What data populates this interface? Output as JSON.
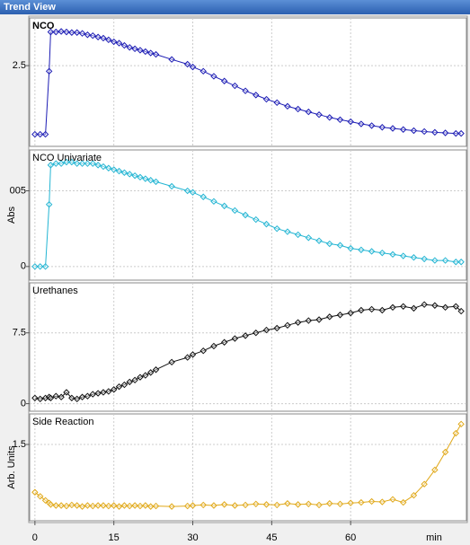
{
  "window_title": "Trend View",
  "chart_data": [
    {
      "type": "line",
      "title": "NCO",
      "color": "#1c1cb4",
      "xlim": [
        -1,
        82
      ],
      "ylim": [
        -0.38,
        4.2
      ],
      "yticks": [
        2.5
      ],
      "x": [
        0,
        1,
        2,
        2.7,
        3,
        4,
        5,
        6,
        7,
        8,
        9,
        10,
        11,
        12,
        13,
        14,
        15,
        16,
        17,
        18,
        19,
        20,
        21,
        22,
        23,
        26,
        29,
        30,
        32,
        34,
        36,
        38,
        40,
        42,
        44,
        46,
        48,
        50,
        52,
        54,
        56,
        58,
        60,
        62,
        64,
        66,
        68,
        70,
        72,
        74,
        76,
        78,
        80,
        81
      ],
      "values": [
        0.05,
        0.05,
        0.05,
        2.3,
        3.7,
        3.7,
        3.72,
        3.7,
        3.68,
        3.68,
        3.65,
        3.6,
        3.57,
        3.52,
        3.48,
        3.42,
        3.35,
        3.3,
        3.22,
        3.15,
        3.1,
        3.05,
        3.0,
        2.95,
        2.9,
        2.72,
        2.55,
        2.45,
        2.3,
        2.12,
        1.95,
        1.78,
        1.6,
        1.45,
        1.3,
        1.18,
        1.05,
        0.95,
        0.85,
        0.75,
        0.65,
        0.57,
        0.5,
        0.42,
        0.36,
        0.3,
        0.26,
        0.22,
        0.18,
        0.15,
        0.12,
        0.1,
        0.08,
        0.08
      ]
    },
    {
      "type": "line",
      "title": "NCO Univariate",
      "ylabel": "Abs",
      "color": "#23b5d3",
      "xlim": [
        -1,
        82
      ],
      "ylim": [
        -0.0009,
        0.0077
      ],
      "yticks": [
        {
          "value": 0.005,
          "label": "005"
        },
        0
      ],
      "x": [
        0,
        1,
        2,
        2.7,
        3,
        4,
        5,
        6,
        7,
        8,
        9,
        10,
        11,
        12,
        13,
        14,
        15,
        16,
        17,
        18,
        19,
        20,
        21,
        22,
        23,
        26,
        29,
        30,
        32,
        34,
        36,
        38,
        40,
        42,
        44,
        46,
        48,
        50,
        52,
        54,
        56,
        58,
        60,
        62,
        64,
        66,
        68,
        70,
        72,
        74,
        76,
        78,
        80,
        81
      ],
      "values": [
        0,
        0,
        0,
        0.0041,
        0.0067,
        0.0068,
        0.0068,
        0.0069,
        0.0069,
        0.0068,
        0.0068,
        0.0068,
        0.0068,
        0.0067,
        0.0066,
        0.0065,
        0.0064,
        0.0063,
        0.0062,
        0.0061,
        0.006,
        0.0059,
        0.0058,
        0.0057,
        0.0056,
        0.0053,
        0.005,
        0.0049,
        0.0046,
        0.0043,
        0.004,
        0.0037,
        0.0034,
        0.0031,
        0.0028,
        0.0025,
        0.0023,
        0.0021,
        0.0019,
        0.0017,
        0.0015,
        0.0014,
        0.0012,
        0.0011,
        0.001,
        0.0009,
        0.0008,
        0.0007,
        0.0006,
        0.0005,
        0.0004,
        0.0004,
        0.0003,
        0.0003
      ]
    },
    {
      "type": "line",
      "title": "Urethanes",
      "color": "#111111",
      "xlim": [
        -1,
        82
      ],
      "ylim": [
        -0.8,
        12.8
      ],
      "yticks": [
        7.5,
        0
      ],
      "x": [
        0,
        1,
        2,
        2.7,
        3,
        4,
        5,
        6,
        7,
        8,
        9,
        10,
        11,
        12,
        13,
        14,
        15,
        16,
        17,
        18,
        19,
        20,
        21,
        22,
        23,
        26,
        29,
        30,
        32,
        34,
        36,
        38,
        40,
        42,
        44,
        46,
        48,
        50,
        52,
        54,
        56,
        58,
        60,
        62,
        64,
        66,
        68,
        70,
        72,
        74,
        76,
        78,
        80,
        81
      ],
      "values": [
        0.6,
        0.5,
        0.6,
        0.7,
        0.6,
        0.8,
        0.7,
        1.2,
        0.6,
        0.5,
        0.7,
        0.8,
        1.0,
        1.1,
        1.2,
        1.3,
        1.5,
        1.8,
        2.0,
        2.3,
        2.5,
        2.8,
        3.0,
        3.3,
        3.6,
        4.4,
        4.9,
        5.2,
        5.6,
        6.1,
        6.5,
        6.9,
        7.2,
        7.5,
        7.8,
        8.0,
        8.3,
        8.6,
        8.8,
        8.9,
        9.2,
        9.4,
        9.6,
        9.9,
        10.0,
        9.9,
        10.2,
        10.3,
        10.1,
        10.5,
        10.4,
        10.2,
        10.3,
        9.8
      ]
    },
    {
      "type": "line",
      "title": "Side Reaction",
      "ylabel": "Arb. Units",
      "color": "#e0a818",
      "xlim": [
        -1,
        82
      ],
      "ylim": [
        0,
        2.1
      ],
      "yticks": [
        1.5
      ],
      "xticks": [
        0,
        15,
        30,
        45,
        60
      ],
      "xlabel": "min",
      "x": [
        0,
        1,
        2,
        2.7,
        3,
        4,
        5,
        6,
        7,
        8,
        9,
        10,
        11,
        12,
        13,
        14,
        15,
        16,
        17,
        18,
        19,
        20,
        21,
        22,
        23,
        26,
        29,
        30,
        32,
        34,
        36,
        38,
        40,
        42,
        44,
        46,
        48,
        50,
        52,
        54,
        56,
        58,
        60,
        62,
        64,
        66,
        68,
        70,
        72,
        74,
        76,
        78,
        80,
        81
      ],
      "values": [
        0.56,
        0.48,
        0.4,
        0.35,
        0.32,
        0.3,
        0.3,
        0.29,
        0.31,
        0.3,
        0.28,
        0.3,
        0.29,
        0.3,
        0.3,
        0.29,
        0.3,
        0.28,
        0.3,
        0.29,
        0.3,
        0.29,
        0.3,
        0.28,
        0.29,
        0.28,
        0.29,
        0.3,
        0.31,
        0.3,
        0.32,
        0.3,
        0.31,
        0.33,
        0.32,
        0.31,
        0.34,
        0.32,
        0.33,
        0.31,
        0.34,
        0.33,
        0.35,
        0.36,
        0.38,
        0.37,
        0.42,
        0.36,
        0.5,
        0.72,
        1.0,
        1.35,
        1.72,
        1.9
      ]
    }
  ]
}
